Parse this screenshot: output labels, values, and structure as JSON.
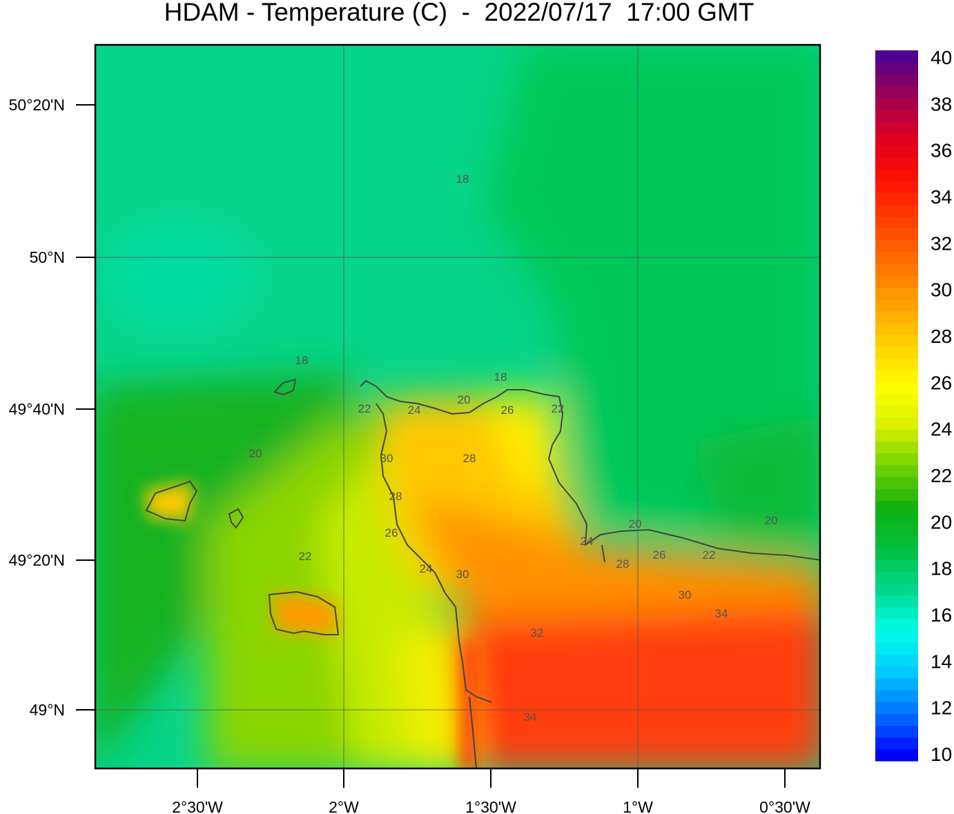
{
  "title": "HDAM - Temperature (C)  -  2022/07/17  17:00 GMT",
  "map": {
    "variable": "Temperature",
    "units": "C",
    "lat_ticks": [
      "50°20'N",
      "50°N",
      "49°40'N",
      "49°20'N",
      "49°N"
    ],
    "lon_ticks": [
      "2°30'W",
      "2°W",
      "1°30'W",
      "1°W",
      "0°30'W"
    ],
    "contour_labels": [
      "18",
      "18",
      "18",
      "20",
      "22",
      "24",
      "26",
      "22",
      "28",
      "30",
      "28",
      "26",
      "24",
      "22",
      "20",
      "20",
      "24",
      "30",
      "32",
      "34",
      "28",
      "26",
      "22",
      "20",
      "30",
      "34"
    ]
  },
  "colorbar": {
    "labels": [
      "40",
      "38",
      "36",
      "34",
      "32",
      "30",
      "28",
      "26",
      "24",
      "22",
      "20",
      "18",
      "16",
      "14",
      "12",
      "10"
    ],
    "range": [
      10,
      40
    ],
    "colors": [
      "#0000ff",
      "#0070ff",
      "#00c8ff",
      "#00ffe8",
      "#00d890",
      "#00c040",
      "#10b010",
      "#70d000",
      "#d8f000",
      "#ffff00",
      "#ffd000",
      "#ffa000",
      "#ff7000",
      "#ff4000",
      "#ff1000",
      "#e00020",
      "#a00050",
      "#500090"
    ]
  }
}
